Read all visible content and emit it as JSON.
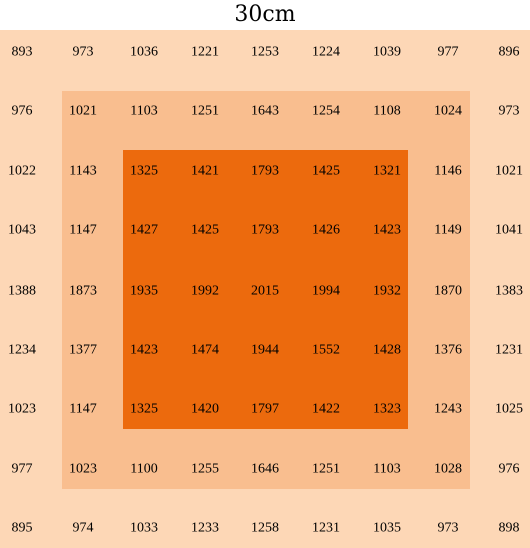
{
  "chart_data": {
    "type": "heatmap",
    "title": "30cm",
    "rows": 9,
    "cols": 9,
    "values": [
      [
        893,
        973,
        1036,
        1221,
        1253,
        1224,
        1039,
        977,
        896
      ],
      [
        976,
        1021,
        1103,
        1251,
        1643,
        1254,
        1108,
        1024,
        973
      ],
      [
        1022,
        1143,
        1325,
        1421,
        1793,
        1425,
        1321,
        1146,
        1021
      ],
      [
        1043,
        1147,
        1427,
        1425,
        1793,
        1426,
        1423,
        1149,
        1041
      ],
      [
        1388,
        1873,
        1935,
        1992,
        2015,
        1994,
        1932,
        1870,
        1383
      ],
      [
        1234,
        1377,
        1423,
        1474,
        1944,
        1552,
        1428,
        1376,
        1231
      ],
      [
        1023,
        1147,
        1325,
        1420,
        1797,
        1422,
        1323,
        1243,
        1025
      ],
      [
        977,
        1023,
        1100,
        1255,
        1646,
        1251,
        1103,
        1028,
        976
      ],
      [
        895,
        974,
        1033,
        1233,
        1258,
        1231,
        1035,
        973,
        898
      ]
    ],
    "zone_colors": {
      "outer": "#FDD7B6",
      "middle": "#F9BE8F",
      "inner": "#EC6A0D"
    }
  }
}
